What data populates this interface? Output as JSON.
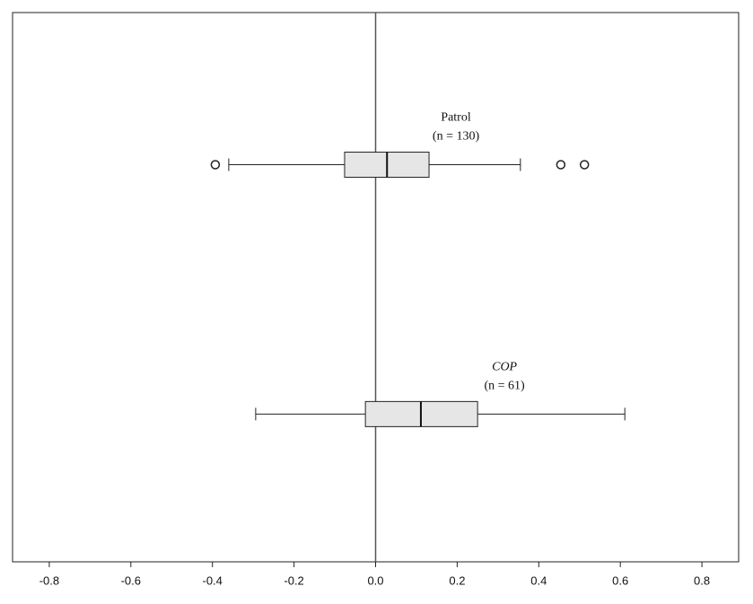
{
  "chart_data": {
    "type": "box",
    "orientation": "horizontal",
    "xlim": [
      -0.89,
      0.89
    ],
    "xticks": [
      -0.8,
      -0.6,
      -0.4,
      -0.2,
      {
        "value": 0,
        "label": "0.0"
      },
      0.2,
      0.4,
      0.6,
      0.8
    ],
    "reference_line": 0,
    "box_color": "#e6e6e6",
    "series": [
      {
        "name": "Patrol",
        "n_label": "(n = 130)",
        "italic": false,
        "whislo": -0.36,
        "q1": -0.076,
        "med": 0.028,
        "q3": 0.131,
        "whishi": 0.355,
        "fliers": [
          -0.393,
          0.454,
          0.512
        ]
      },
      {
        "name": "COP",
        "n_label": "(n = 61)",
        "italic": true,
        "whislo": -0.294,
        "q1": -0.025,
        "med": 0.111,
        "q3": 0.25,
        "whishi": 0.611,
        "fliers": []
      }
    ]
  }
}
